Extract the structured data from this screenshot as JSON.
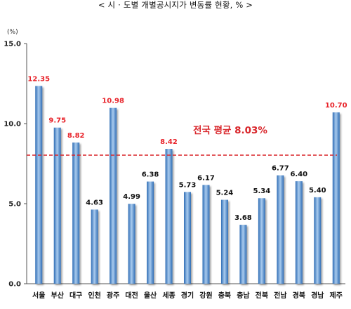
{
  "title": "< 시 · 도별 개별공시지가 변동률 현황, % >",
  "chart_data": {
    "type": "bar",
    "unit_label": "(%)",
    "ylim": [
      0,
      15
    ],
    "yticks": [
      0,
      5,
      10,
      15
    ],
    "ytick_labels": [
      "0.0",
      "5.0",
      "10.0",
      "15.0"
    ],
    "grid": false,
    "categories": [
      "서울",
      "부산",
      "대구",
      "인천",
      "광주",
      "대전",
      "울산",
      "세종",
      "경기",
      "강원",
      "충북",
      "충남",
      "전북",
      "전남",
      "경북",
      "경남",
      "제주"
    ],
    "values": [
      12.35,
      9.75,
      8.82,
      4.63,
      10.98,
      4.99,
      6.38,
      8.42,
      5.73,
      6.17,
      5.24,
      3.68,
      5.34,
      6.77,
      6.4,
      5.4,
      10.7
    ],
    "value_labels": [
      "12.35",
      "9.75",
      "8.82",
      "4.63",
      "10.98",
      "4.99",
      "6.38",
      "8.42",
      "5.73",
      "6.17",
      "5.24",
      "3.68",
      "5.34",
      "6.77",
      "6.40",
      "5.40",
      "10.70"
    ],
    "highlight_label_color": "#e8232a",
    "normal_label_color": "#111111",
    "highlighted": [
      true,
      true,
      true,
      false,
      true,
      false,
      false,
      true,
      false,
      false,
      false,
      false,
      false,
      false,
      false,
      false,
      true
    ],
    "bar_color_edge": "#2f6db5",
    "bar_color_light": "#a9cbee",
    "average": {
      "value": 8.03,
      "label": "전국 평균 8.03%",
      "color": "#d9262b"
    }
  }
}
